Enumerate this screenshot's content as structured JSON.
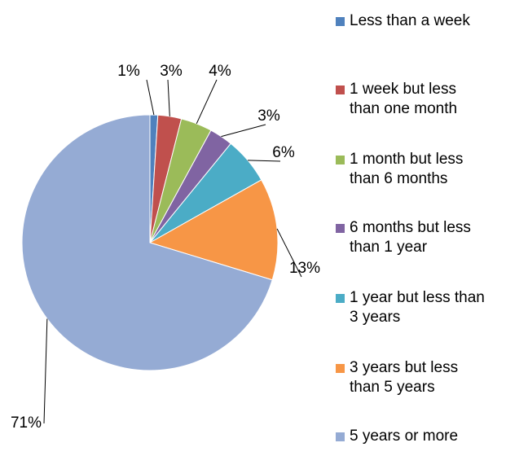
{
  "chart_data": {
    "type": "pie",
    "categories": [
      "Less than a week",
      "1 week but less than one month",
      "1 month but less than 6 months",
      "6 months but less than 1 year",
      "1 year but less than 3 years",
      "3 years but less than 5 years",
      "5 years or more"
    ],
    "values": [
      1,
      3,
      4,
      3,
      6,
      13,
      71
    ],
    "value_labels": [
      "1%",
      "3%",
      "4%",
      "3%",
      "6%",
      "13%",
      "71%"
    ],
    "colors": [
      "#4F81BD",
      "#C0504D",
      "#9BBB59",
      "#8064A2",
      "#4BACC6",
      "#F79646",
      "#95ABD4"
    ],
    "legend": "right"
  }
}
